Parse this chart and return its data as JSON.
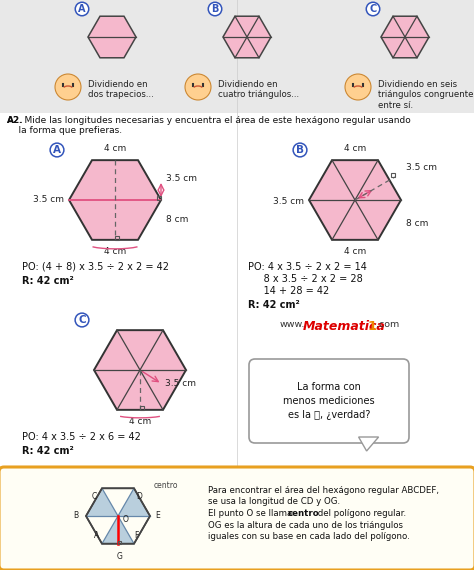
{
  "bg_color": "#f0f0f0",
  "content_bg": "#ffffff",
  "hex_fill": "#f5b8cc",
  "hex_fill2": "#f0b0c0",
  "hex_outline": "#444444",
  "pink_line": "#e05080",
  "dashed_color": "#555555",
  "label_circle_color": "#3355bb",
  "top_text_a": "Dividiendo en\ndos trapecios...",
  "top_text_b": "Dividiendo en\ncuatro triángulos...",
  "top_text_c": "Dividiendo en seis\ntriángulos congruentes\nentre sí.",
  "a2_text_line1": "A2. Mide las longitudes necesarias y encuentra el área de este hexágono regular usando",
  "a2_text_line2": "    la forma que prefieras.",
  "po_a": "PO: (4 + 8) x 3.5 ÷ 2 x 2 = 42",
  "r_a": "R: 42 cm²",
  "po_b1": "PO: 4 x 3.5 ÷ 2 x 2 = 14",
  "po_b2": "     8 x 3.5 ÷ 2 x 2 = 28",
  "po_b3": "     14 + 28 = 42",
  "r_b": "R: 42 cm²",
  "po_c": "PO: 4 x 3.5 ÷ 2 x 6 = 42",
  "r_c": "R: 42 cm²",
  "bubble_text": "La forma con\nmenos mediciones\nes la Ⓒ, ¿verdad?",
  "bottom_text1": "Para encontrar el área del hexágono regular ABCDEF,",
  "bottom_text2": "se usa la longitud de CD y OG.",
  "bottom_text3_a": "El punto O se llama ",
  "bottom_text3_b": "centro",
  "bottom_text3_c": " del polígono regular.",
  "bottom_text4": "OG es la altura de cada uno de los triángulos",
  "bottom_text5": "iguales con su base en cada lado del polígono.",
  "orange_border": "#e8a020",
  "light_blue_hex": "#a8c4d8",
  "gray_bg_top": "#e8e8e8"
}
